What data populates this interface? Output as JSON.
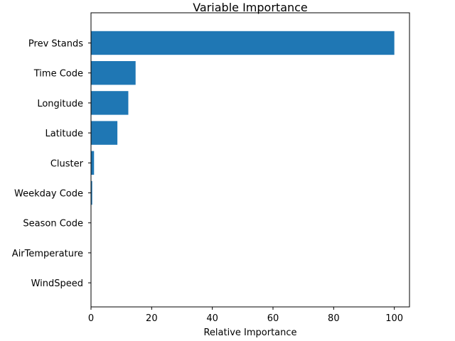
{
  "chart_data": {
    "type": "bar",
    "orientation": "horizontal",
    "title": "Variable Importance",
    "xlabel": "Relative Importance",
    "ylabel": "",
    "xlim": [
      0,
      105
    ],
    "x_ticks": [
      0,
      20,
      40,
      60,
      80,
      100
    ],
    "categories": [
      "Prev Stands",
      "Time Code",
      "Longitude",
      "Latitude",
      "Cluster",
      "Weekday Code",
      "Season Code",
      "AirTemperature",
      "WindSpeed"
    ],
    "values": [
      100,
      14.7,
      12.3,
      8.7,
      1.0,
      0.4,
      0.05,
      0.02,
      0.01
    ],
    "bar_color": "#1f77b4",
    "grid": false,
    "legend": "none"
  }
}
